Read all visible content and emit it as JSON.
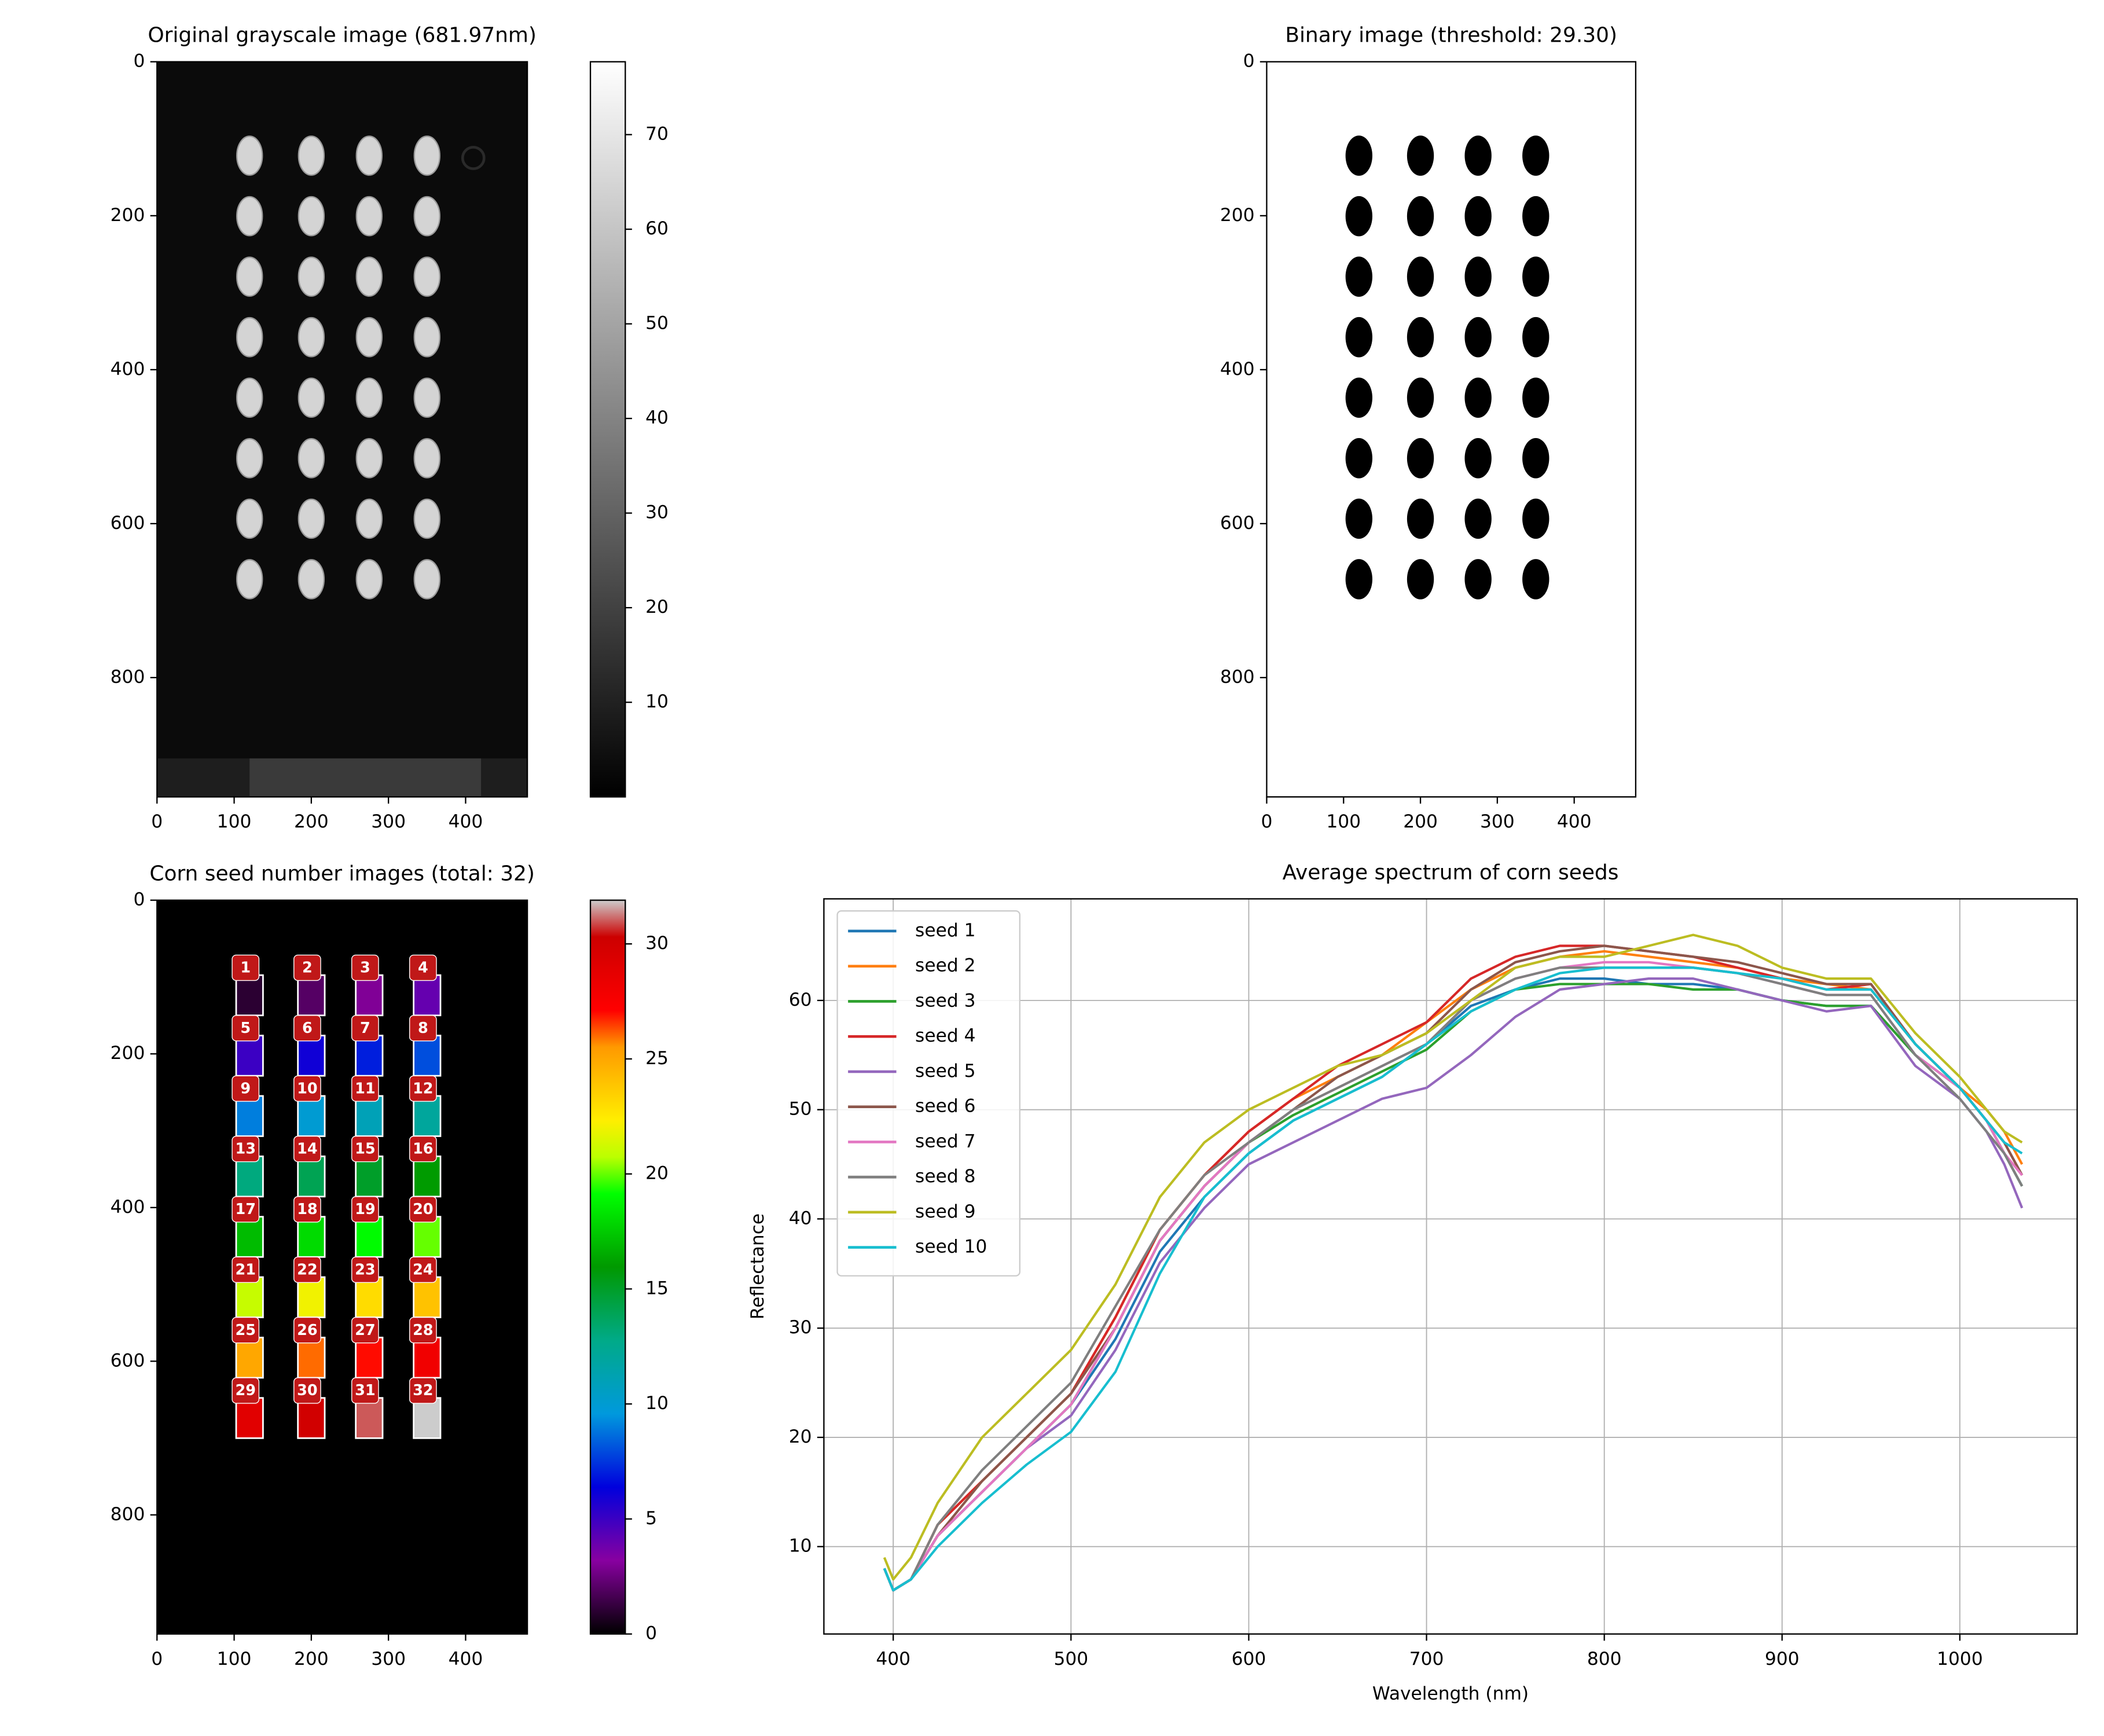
{
  "chart_data": [
    {
      "type": "image",
      "style": "grayscale",
      "title": "Original grayscale image (681.97nm)",
      "xlim": [
        0,
        480
      ],
      "ylim": [
        955,
        0
      ],
      "xticks": [
        0,
        100,
        200,
        300,
        400
      ],
      "yticks": [
        0,
        200,
        400,
        600,
        800
      ],
      "colorbar": {
        "lim": [
          0,
          77.7
        ],
        "ticks": [
          10,
          20,
          30,
          40,
          50,
          60,
          70
        ]
      }
    },
    {
      "type": "image",
      "style": "binary",
      "title": "Binary image (threshold: 29.30)",
      "xlim": [
        0,
        480
      ],
      "ylim": [
        955,
        0
      ],
      "xticks": [
        0,
        100,
        200,
        300,
        400
      ],
      "yticks": [
        0,
        200,
        400,
        600,
        800
      ]
    },
    {
      "type": "image",
      "style": "labeled",
      "title": "Corn seed number images (total: 32)",
      "xlim": [
        0,
        480
      ],
      "ylim": [
        955,
        0
      ],
      "xticks": [
        0,
        100,
        200,
        300,
        400
      ],
      "yticks": [
        0,
        200,
        400,
        600,
        800
      ],
      "seed_labels": [
        1,
        2,
        3,
        4,
        5,
        6,
        7,
        8,
        9,
        10,
        11,
        12,
        13,
        14,
        15,
        16,
        17,
        18,
        19,
        20,
        21,
        22,
        23,
        24,
        25,
        26,
        27,
        28,
        29,
        30,
        31,
        32
      ],
      "colorbar": {
        "lim": [
          0,
          31.9
        ],
        "ticks": [
          0,
          5,
          10,
          15,
          20,
          25,
          30
        ]
      }
    },
    {
      "type": "line",
      "title": "Average spectrum of corn seeds",
      "xlabel": "Wavelength (nm)",
      "ylabel": "Reflectance",
      "xlim": [
        361,
        1066
      ],
      "ylim": [
        2,
        69.3
      ],
      "xticks": [
        400,
        500,
        600,
        700,
        800,
        900,
        1000
      ],
      "yticks": [
        10,
        20,
        30,
        40,
        50,
        60
      ],
      "grid": true,
      "legend": "upper left",
      "x": [
        395,
        400,
        410,
        425,
        450,
        475,
        500,
        525,
        550,
        575,
        600,
        625,
        650,
        675,
        700,
        725,
        750,
        775,
        800,
        825,
        850,
        875,
        900,
        925,
        950,
        975,
        1000,
        1015,
        1025,
        1035
      ],
      "series": [
        {
          "name": "seed 1",
          "color": "#1f77b4",
          "values": [
            8,
            6,
            7,
            11,
            15,
            19,
            23,
            29,
            37,
            42,
            46,
            49,
            51,
            53,
            56,
            59.5,
            61,
            62,
            62,
            61.5,
            61.5,
            61,
            60,
            59.5,
            59.5,
            55,
            52,
            49,
            46,
            43
          ]
        },
        {
          "name": "seed 2",
          "color": "#ff7f0e",
          "values": [
            8,
            6,
            7,
            12,
            16,
            20,
            24,
            31,
            39,
            44,
            48,
            51,
            53,
            55,
            58,
            61,
            63,
            64,
            64.5,
            64,
            63.5,
            63,
            62,
            61.5,
            61,
            56,
            52,
            50,
            48,
            45
          ]
        },
        {
          "name": "seed 3",
          "color": "#2ca02c",
          "values": [
            8,
            6,
            7,
            11,
            15,
            19,
            23,
            30,
            38,
            43,
            47,
            49.5,
            51.5,
            53.5,
            55.5,
            59,
            61,
            61.5,
            61.5,
            61.5,
            61,
            61,
            60,
            59.5,
            59.5,
            55,
            52,
            49,
            46,
            43
          ]
        },
        {
          "name": "seed 4",
          "color": "#d62728",
          "values": [
            8,
            6,
            7,
            12,
            16,
            20,
            24,
            31,
            39,
            44,
            48,
            51,
            54,
            56,
            58,
            62,
            64,
            65,
            65,
            64.5,
            64,
            63,
            62,
            61,
            61.5,
            56,
            52,
            49,
            47,
            44
          ]
        },
        {
          "name": "seed 5",
          "color": "#9467bd",
          "values": [
            8,
            6,
            7,
            11,
            15,
            19,
            22,
            28,
            36,
            41,
            45,
            47,
            49,
            51,
            52,
            55,
            58.5,
            61,
            61.5,
            62,
            62,
            61,
            60,
            59,
            59.5,
            54,
            51,
            48,
            45,
            41
          ]
        },
        {
          "name": "seed 6",
          "color": "#8c564b",
          "values": [
            8,
            6,
            7,
            11,
            16,
            20,
            24,
            30,
            38,
            43,
            47,
            50,
            53,
            55,
            57,
            61,
            63.5,
            64.5,
            65,
            64.5,
            64,
            63.5,
            62.5,
            61.5,
            61.5,
            56,
            52,
            49,
            47,
            44
          ]
        },
        {
          "name": "seed 7",
          "color": "#e377c2",
          "values": [
            8,
            6,
            7,
            11,
            15,
            19,
            23,
            30,
            38,
            43,
            47,
            50,
            52,
            54,
            56,
            60,
            62,
            63,
            63.5,
            63.5,
            63,
            62.5,
            61.5,
            60.5,
            60.5,
            55,
            52,
            49,
            46,
            44
          ]
        },
        {
          "name": "seed 8",
          "color": "#7f7f7f",
          "values": [
            8,
            6,
            7,
            12,
            17,
            21,
            25,
            32,
            39,
            44,
            47,
            50,
            52,
            54,
            56,
            60,
            62,
            63,
            63,
            63,
            63,
            62.5,
            61.5,
            60.5,
            60.5,
            55,
            51,
            48,
            46,
            43
          ]
        },
        {
          "name": "seed 9",
          "color": "#bcbd22",
          "values": [
            9,
            7,
            9,
            14,
            20,
            24,
            28,
            34,
            42,
            47,
            50,
            52,
            54,
            55,
            57,
            60,
            63,
            64,
            64,
            65,
            66,
            65,
            63,
            62,
            62,
            57,
            53,
            50,
            48,
            47
          ]
        },
        {
          "name": "seed 10",
          "color": "#17becf",
          "values": [
            8,
            6,
            7,
            10,
            14,
            17.5,
            20.5,
            26,
            35,
            42,
            46,
            49,
            51,
            53,
            56,
            59,
            61,
            62.5,
            63,
            63,
            63,
            62.5,
            62,
            61,
            61,
            56,
            52,
            49,
            47,
            46
          ]
        }
      ]
    }
  ]
}
